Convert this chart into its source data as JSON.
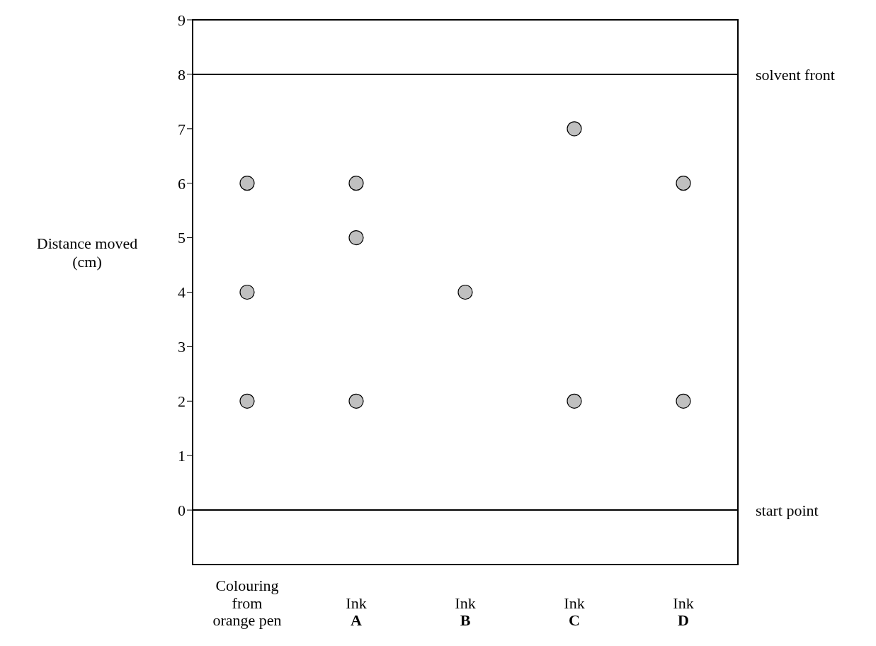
{
  "chart_data": {
    "type": "scatter",
    "ylabel": "Distance moved (cm)",
    "categories": [
      "Colouring from orange pen",
      "Ink A",
      "Ink B",
      "Ink C",
      "Ink D"
    ],
    "series": [
      {
        "color": "#c0c0c0",
        "values": [
          6,
          6,
          4,
          7,
          6
        ]
      },
      {
        "color": "#c0c0c0",
        "values": [
          4,
          5,
          null,
          null,
          null
        ]
      },
      {
        "color": "#c0c0c0",
        "values": [
          2,
          2,
          null,
          2,
          2
        ]
      }
    ],
    "marker": "circle",
    "grid": false,
    "legend": false,
    "ylim": [
      -1,
      9
    ],
    "yticks": [
      0,
      1,
      2,
      3,
      4,
      5,
      6,
      7,
      8,
      9
    ],
    "ref_lines": [
      {
        "axis": "y",
        "value": 8,
        "label": "solvent front",
        "color": "#000000"
      },
      {
        "axis": "y",
        "value": 0,
        "label": "start point",
        "color": "#000000"
      }
    ]
  }
}
